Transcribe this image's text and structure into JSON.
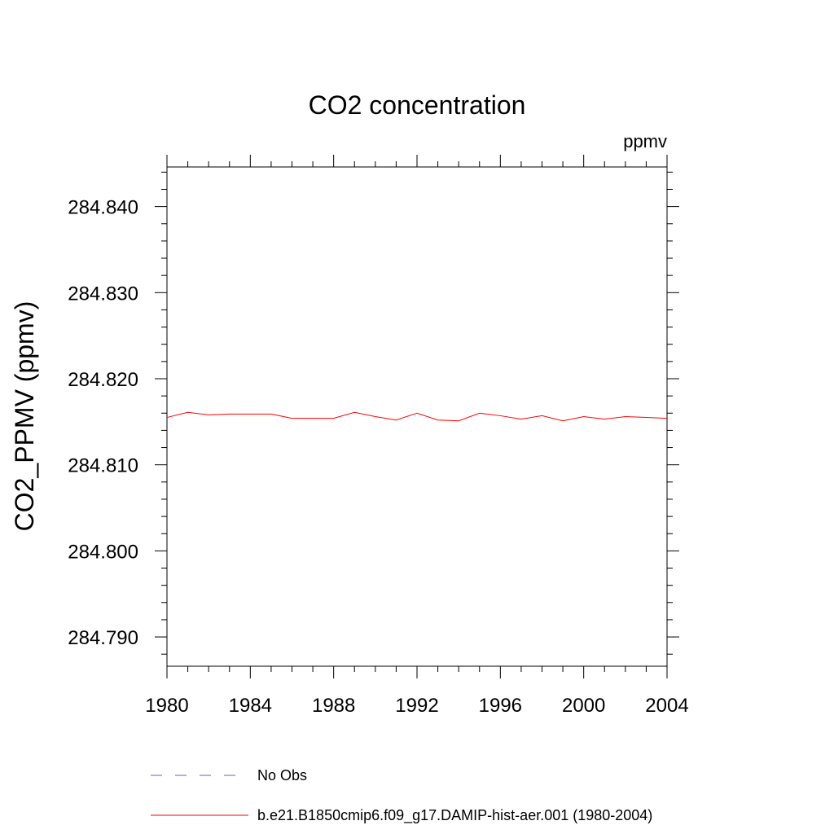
{
  "chart_data": {
    "type": "line",
    "title": "CO2 concentration",
    "units_label": "ppmv",
    "xlabel": "",
    "ylabel": "CO2_PPMV  (ppmv)",
    "xlim": [
      1980,
      2004
    ],
    "ylim": [
      284.7866,
      284.8446
    ],
    "x_ticks": [
      1980,
      1984,
      1988,
      1992,
      1996,
      2000,
      2004
    ],
    "x_tick_labels": [
      "1980",
      "1984",
      "1988",
      "1992",
      "1996",
      "2000",
      "2004"
    ],
    "y_ticks": [
      284.79,
      284.8,
      284.81,
      284.82,
      284.83,
      284.84
    ],
    "y_tick_labels": [
      "284.790",
      "284.800",
      "284.810",
      "284.820",
      "284.830",
      "284.840"
    ],
    "grid": false,
    "legend_position": "bottom",
    "series": [
      {
        "name": "No Obs",
        "color": "#6a5acd",
        "dash": "dashed",
        "x": [],
        "values": []
      },
      {
        "name": "b.e21.B1850cmip6.f09_g17.DAMIP-hist-aer.001 (1980-2004)",
        "color": "#ff0000",
        "dash": "solid",
        "x": [
          1980,
          1981,
          1982,
          1983,
          1984,
          1985,
          1986,
          1987,
          1988,
          1989,
          1990,
          1991,
          1992,
          1993,
          1994,
          1995,
          1996,
          1997,
          1998,
          1999,
          2000,
          2001,
          2002,
          2003,
          2004
        ],
        "values": [
          284.8155,
          284.8161,
          284.8158,
          284.8159,
          284.8159,
          284.8159,
          284.8154,
          284.8154,
          284.8154,
          284.8161,
          284.8156,
          284.8152,
          284.816,
          284.8152,
          284.8151,
          284.816,
          284.8157,
          284.8153,
          284.8157,
          284.8151,
          284.8156,
          284.8153,
          284.8156,
          284.8155,
          284.8154
        ]
      }
    ]
  }
}
